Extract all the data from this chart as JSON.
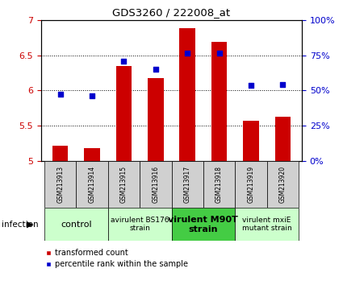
{
  "title": "GDS3260 / 222008_at",
  "samples": [
    "GSM213913",
    "GSM213914",
    "GSM213915",
    "GSM213916",
    "GSM213917",
    "GSM213918",
    "GSM213919",
    "GSM213920"
  ],
  "red_values": [
    5.22,
    5.18,
    6.35,
    6.18,
    6.88,
    6.69,
    5.57,
    5.63
  ],
  "blue_values": [
    47.5,
    46.0,
    71.0,
    65.0,
    76.5,
    76.5,
    53.5,
    54.0
  ],
  "ylim_left": [
    5.0,
    7.0
  ],
  "ylim_right": [
    0,
    100
  ],
  "yticks_left": [
    5.0,
    5.5,
    6.0,
    6.5,
    7.0
  ],
  "ytick_labels_left": [
    "5",
    "5.5",
    "6",
    "6.5",
    "7"
  ],
  "yticks_right": [
    0,
    25,
    50,
    75,
    100
  ],
  "ytick_labels_right": [
    "0%",
    "25%",
    "50%",
    "75%",
    "100%"
  ],
  "groups": [
    {
      "label": "control",
      "samples": [
        0,
        1
      ],
      "color": "#ccffcc",
      "fontsize": 8,
      "bold": false
    },
    {
      "label": "avirulent BS176\nstrain",
      "samples": [
        2,
        3
      ],
      "color": "#ccffcc",
      "fontsize": 6.5,
      "bold": false
    },
    {
      "label": "virulent M90T\nstrain",
      "samples": [
        4,
        5
      ],
      "color": "#44cc44",
      "fontsize": 8,
      "bold": true
    },
    {
      "label": "virulent mxiE\nmutant strain",
      "samples": [
        6,
        7
      ],
      "color": "#ccffcc",
      "fontsize": 6.5,
      "bold": false
    }
  ],
  "bar_color": "#cc0000",
  "dot_color": "#0000cc",
  "bar_width": 0.5,
  "grid_color": "#000000",
  "infection_label": "infection",
  "legend_red": "transformed count",
  "legend_blue": "percentile rank within the sample",
  "left_ycolor": "#cc0000",
  "right_ycolor": "#0000cc",
  "sample_box_color": "#d0d0d0"
}
